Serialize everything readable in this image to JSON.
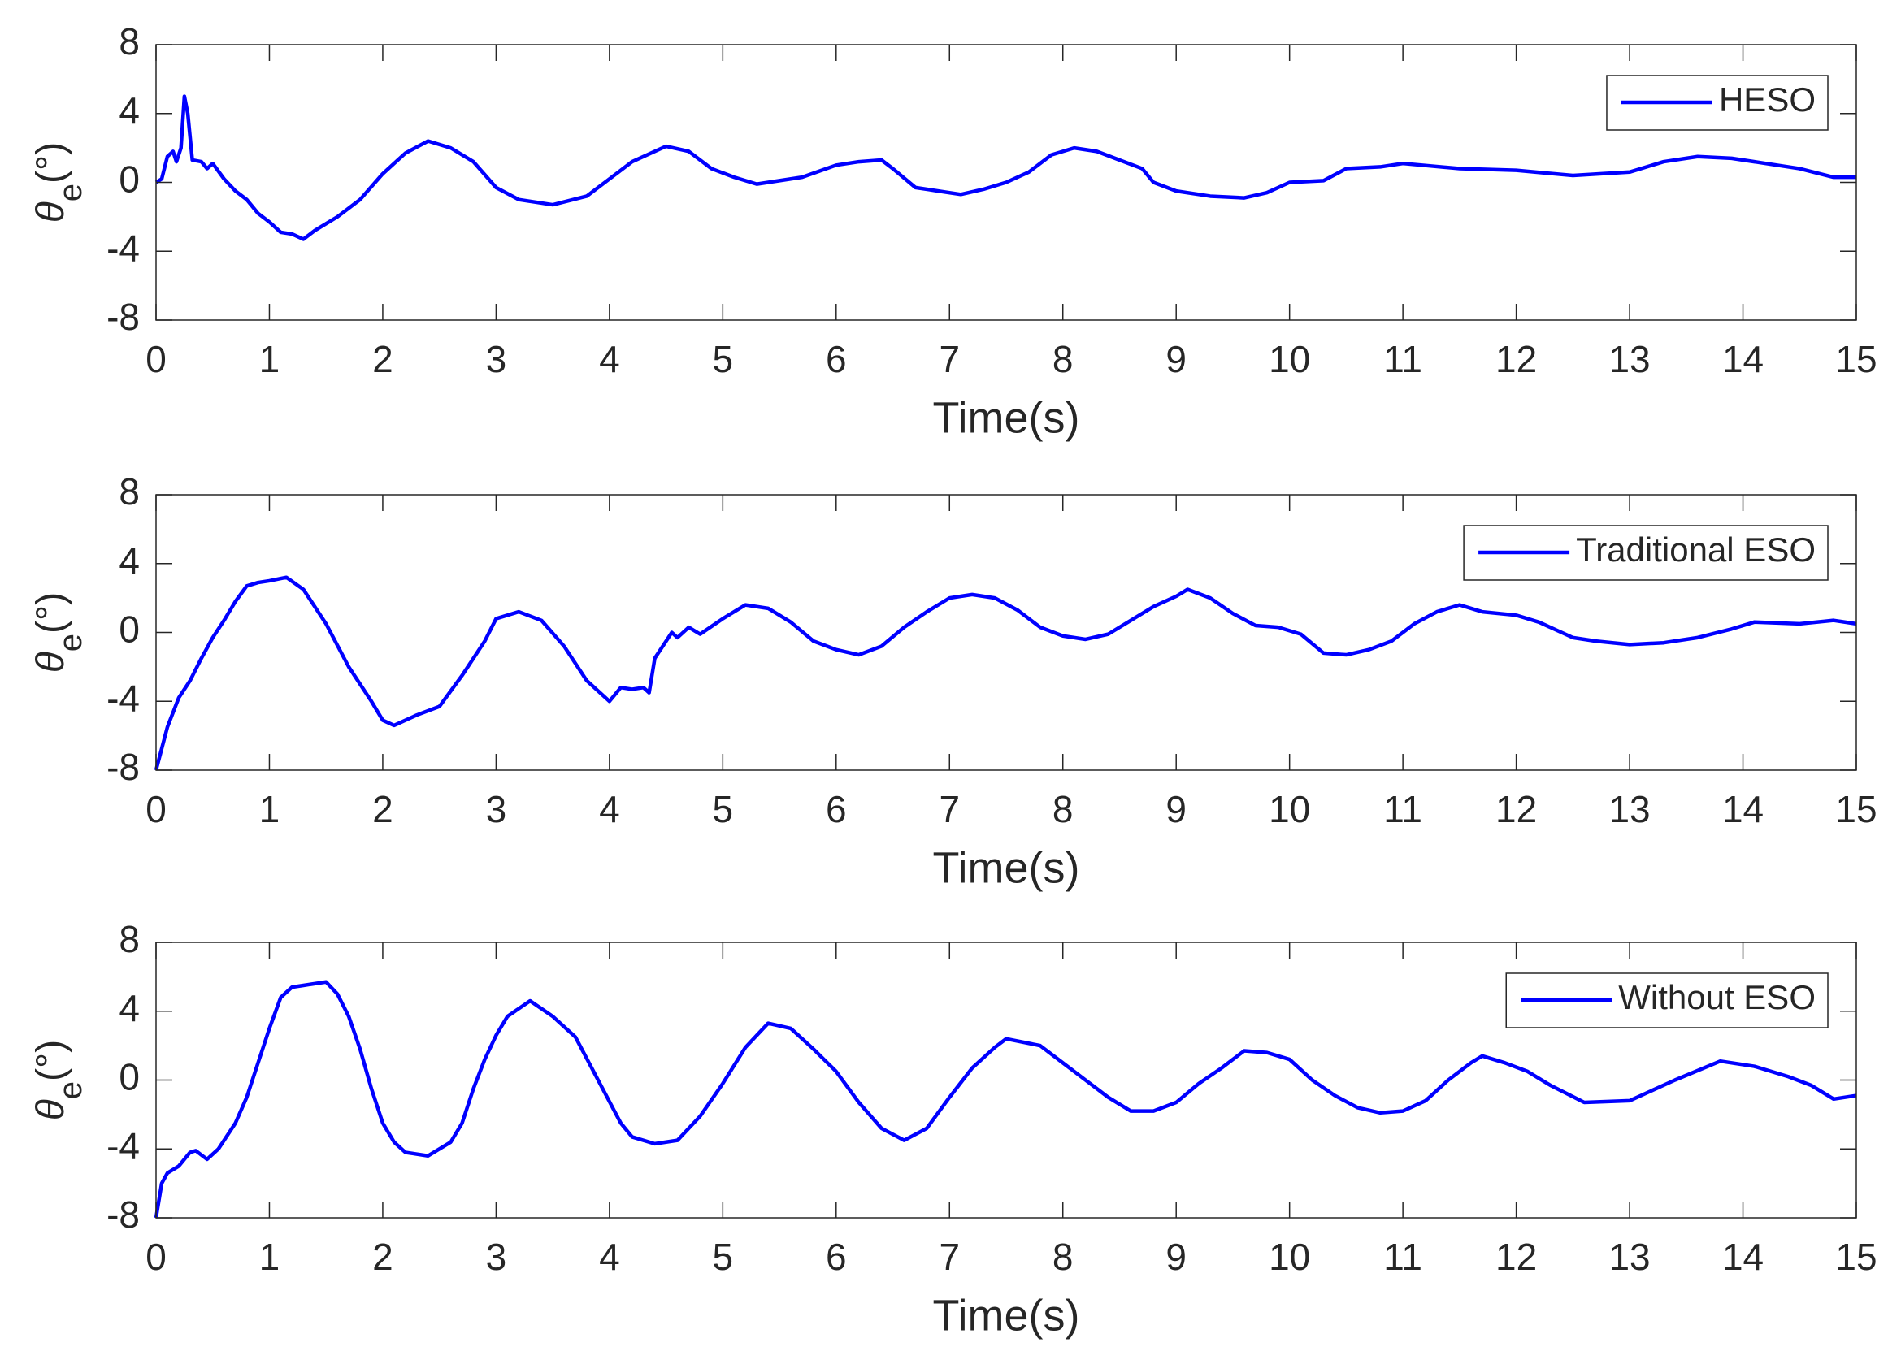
{
  "chart_data": [
    {
      "type": "line",
      "xlabel": "Time(s)",
      "ylabel": [
        "θ",
        "e",
        "(°)"
      ],
      "legend": "upper right",
      "xlim": [
        0,
        15
      ],
      "ylim": [
        -8,
        8
      ],
      "xticks": [
        0,
        1,
        2,
        3,
        4,
        5,
        6,
        7,
        8,
        9,
        10,
        11,
        12,
        13,
        14,
        15
      ],
      "yticks": [
        -8,
        -4,
        0,
        4,
        8
      ],
      "x": [
        0,
        0.05,
        0.1,
        0.15,
        0.18,
        0.22,
        0.25,
        0.28,
        0.32,
        0.4,
        0.45,
        0.5,
        0.6,
        0.7,
        0.8,
        0.9,
        1.0,
        1.1,
        1.2,
        1.3,
        1.4,
        1.5,
        1.6,
        1.8,
        2.0,
        2.2,
        2.4,
        2.6,
        2.8,
        3.0,
        3.2,
        3.5,
        3.8,
        4.0,
        4.2,
        4.5,
        4.7,
        4.9,
        5.1,
        5.3,
        5.5,
        5.7,
        6.0,
        6.2,
        6.4,
        6.5,
        6.7,
        6.9,
        7.1,
        7.3,
        7.5,
        7.7,
        7.9,
        8.1,
        8.3,
        8.5,
        8.7,
        8.8,
        9.0,
        9.3,
        9.6,
        9.8,
        10.0,
        10.3,
        10.5,
        10.8,
        11.0,
        11.5,
        12.0,
        12.5,
        13.0,
        13.3,
        13.6,
        13.9,
        14.2,
        14.5,
        14.8,
        15
      ],
      "series": [
        {
          "name": "HESO",
          "color": "#0000ff",
          "values": [
            0,
            0.2,
            1.5,
            1.8,
            1.2,
            2,
            5.0,
            4,
            1.3,
            1.2,
            0.8,
            1.1,
            0.2,
            -0.5,
            -1,
            -1.8,
            -2.3,
            -2.9,
            -3.0,
            -3.3,
            -2.8,
            -2.4,
            -2.0,
            -1.0,
            0.5,
            1.7,
            2.4,
            2.0,
            1.2,
            -0.3,
            -1.0,
            -1.3,
            -0.8,
            0.2,
            1.2,
            2.1,
            1.8,
            0.8,
            0.3,
            -0.1,
            0.1,
            0.3,
            1.0,
            1.2,
            1.3,
            0.8,
            -0.3,
            -0.5,
            -0.7,
            -0.4,
            0,
            0.6,
            1.6,
            2.0,
            1.8,
            1.3,
            0.8,
            0,
            -0.5,
            -0.8,
            -0.9,
            -0.6,
            0,
            0.1,
            0.8,
            0.9,
            1.1,
            0.8,
            0.7,
            0.4,
            0.6,
            1.2,
            1.5,
            1.4,
            1.1,
            0.8,
            0.3,
            0.3
          ]
        }
      ]
    },
    {
      "type": "line",
      "xlabel": "Time(s)",
      "ylabel": [
        "θ",
        "e",
        "(°)"
      ],
      "legend": "upper right",
      "xlim": [
        0,
        15
      ],
      "ylim": [
        -8,
        8
      ],
      "xticks": [
        0,
        1,
        2,
        3,
        4,
        5,
        6,
        7,
        8,
        9,
        10,
        11,
        12,
        13,
        14,
        15
      ],
      "yticks": [
        -8,
        -4,
        0,
        4,
        8
      ],
      "x": [
        0,
        0.1,
        0.2,
        0.3,
        0.4,
        0.5,
        0.6,
        0.7,
        0.8,
        0.9,
        1.0,
        1.15,
        1.3,
        1.5,
        1.7,
        1.9,
        2.0,
        2.1,
        2.3,
        2.5,
        2.7,
        2.9,
        3.0,
        3.2,
        3.4,
        3.6,
        3.8,
        4.0,
        4.1,
        4.2,
        4.3,
        4.35,
        4.4,
        4.5,
        4.55,
        4.6,
        4.7,
        4.8,
        5.0,
        5.2,
        5.4,
        5.6,
        5.8,
        6.0,
        6.2,
        6.4,
        6.6,
        6.8,
        7.0,
        7.2,
        7.4,
        7.6,
        7.8,
        8.0,
        8.2,
        8.4,
        8.6,
        8.8,
        9.0,
        9.1,
        9.3,
        9.5,
        9.7,
        9.9,
        10.1,
        10.3,
        10.5,
        10.7,
        10.9,
        11.1,
        11.3,
        11.5,
        11.7,
        12.0,
        12.2,
        12.5,
        12.7,
        13.0,
        13.3,
        13.6,
        13.9,
        14.1,
        14.5,
        14.8,
        15
      ],
      "series": [
        {
          "name": "Traditional ESO",
          "color": "#0000ff",
          "values": [
            -8,
            -5.5,
            -3.8,
            -2.8,
            -1.5,
            -0.3,
            0.7,
            1.8,
            2.7,
            2.9,
            3.0,
            3.2,
            2.5,
            0.5,
            -2,
            -4,
            -5.1,
            -5.4,
            -4.8,
            -4.3,
            -2.5,
            -0.5,
            0.8,
            1.2,
            0.7,
            -0.8,
            -2.8,
            -4.0,
            -3.2,
            -3.3,
            -3.2,
            -3.5,
            -1.5,
            -0.5,
            0,
            -0.3,
            0.3,
            -0.1,
            0.8,
            1.6,
            1.4,
            0.6,
            -0.5,
            -1.0,
            -1.3,
            -0.8,
            0.3,
            1.2,
            2.0,
            2.2,
            2.0,
            1.3,
            0.3,
            -0.2,
            -0.4,
            -0.1,
            0.7,
            1.5,
            2.1,
            2.5,
            2.0,
            1.1,
            0.4,
            0.3,
            -0.1,
            -1.2,
            -1.3,
            -1.0,
            -0.5,
            0.5,
            1.2,
            1.6,
            1.2,
            1.0,
            0.6,
            -0.3,
            -0.5,
            -0.7,
            -0.6,
            -0.3,
            0.2,
            0.6,
            0.5,
            0.7,
            0.5
          ]
        }
      ]
    },
    {
      "type": "line",
      "xlabel": "Time(s)",
      "ylabel": [
        "θ",
        "e",
        "(°)"
      ],
      "legend": "upper right",
      "xlim": [
        0,
        15
      ],
      "ylim": [
        -8,
        8
      ],
      "xticks": [
        0,
        1,
        2,
        3,
        4,
        5,
        6,
        7,
        8,
        9,
        10,
        11,
        12,
        13,
        14,
        15
      ],
      "yticks": [
        -8,
        -4,
        0,
        4,
        8
      ],
      "x": [
        0,
        0.05,
        0.1,
        0.2,
        0.3,
        0.35,
        0.45,
        0.55,
        0.7,
        0.8,
        0.9,
        1.0,
        1.1,
        1.2,
        1.3,
        1.4,
        1.5,
        1.6,
        1.7,
        1.8,
        1.9,
        2.0,
        2.1,
        2.2,
        2.4,
        2.6,
        2.7,
        2.8,
        2.9,
        3.0,
        3.1,
        3.3,
        3.5,
        3.7,
        3.9,
        4.1,
        4.2,
        4.4,
        4.6,
        4.8,
        5.0,
        5.2,
        5.4,
        5.6,
        5.8,
        6.0,
        6.2,
        6.4,
        6.6,
        6.8,
        7.0,
        7.2,
        7.4,
        7.5,
        7.8,
        8.0,
        8.2,
        8.4,
        8.6,
        8.8,
        9.0,
        9.2,
        9.4,
        9.6,
        9.8,
        10.0,
        10.2,
        10.4,
        10.6,
        10.8,
        11.0,
        11.2,
        11.4,
        11.6,
        11.7,
        11.9,
        12.1,
        12.3,
        12.6,
        13.0,
        13.4,
        13.8,
        14.1,
        14.4,
        14.6,
        14.8,
        15
      ],
      "series": [
        {
          "name": "Without ESO",
          "color": "#0000ff",
          "values": [
            -8,
            -6,
            -5.4,
            -5.0,
            -4.2,
            -4.1,
            -4.6,
            -4.0,
            -2.5,
            -1,
            1,
            3,
            4.8,
            5.4,
            5.5,
            5.6,
            5.7,
            5.0,
            3.7,
            1.8,
            -0.5,
            -2.5,
            -3.6,
            -4.2,
            -4.4,
            -3.6,
            -2.5,
            -0.5,
            1.2,
            2.6,
            3.7,
            4.6,
            3.7,
            2.5,
            0,
            -2.5,
            -3.3,
            -3.7,
            -3.5,
            -2.1,
            -0.2,
            1.9,
            3.3,
            3.0,
            1.8,
            0.5,
            -1.3,
            -2.8,
            -3.5,
            -2.8,
            -1,
            0.7,
            1.9,
            2.4,
            2.0,
            1.0,
            0,
            -1.0,
            -1.8,
            -1.8,
            -1.3,
            -0.2,
            0.7,
            1.7,
            1.6,
            1.2,
            0,
            -0.9,
            -1.6,
            -1.9,
            -1.8,
            -1.2,
            0,
            1.0,
            1.4,
            1.0,
            0.5,
            -0.3,
            -1.3,
            -1.2,
            0.0,
            1.1,
            0.8,
            0.2,
            -0.3,
            -1.1,
            -0.9
          ]
        }
      ]
    }
  ]
}
